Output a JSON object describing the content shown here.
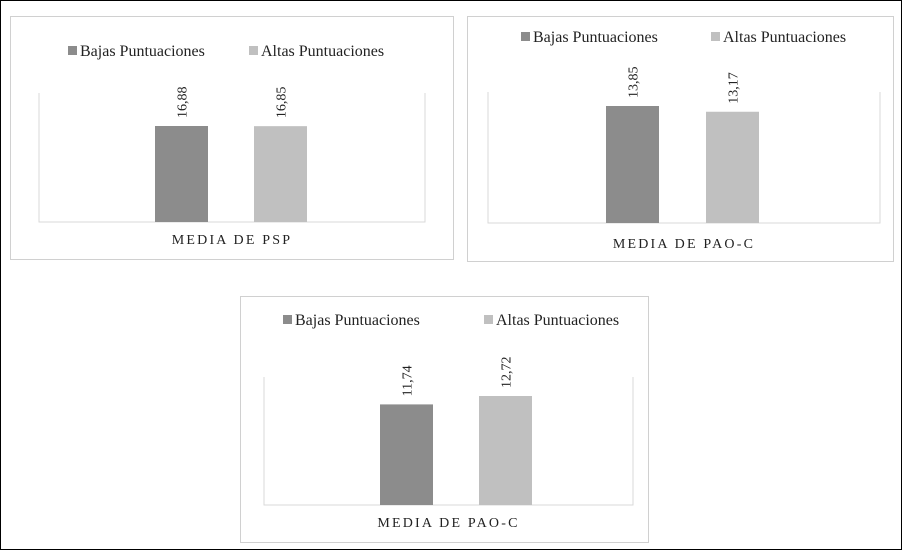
{
  "chart_data": [
    {
      "type": "bar",
      "categories": [
        "MEDIA DE PSP"
      ],
      "series": [
        {
          "name": "Bajas Puntuaciones",
          "values": [
            16.88
          ],
          "labels": [
            "16,88"
          ],
          "color": "#8c8c8c"
        },
        {
          "name": "Altas Puntuaciones",
          "values": [
            16.85
          ],
          "labels": [
            "16,85"
          ],
          "color": "#c0c0c0"
        }
      ],
      "legend": "top",
      "grid": false
    },
    {
      "type": "bar",
      "categories": [
        "MEDIA DE PAO-C"
      ],
      "series": [
        {
          "name": "Bajas Puntuaciones",
          "values": [
            13.85
          ],
          "labels": [
            "13,85"
          ],
          "color": "#8c8c8c"
        },
        {
          "name": "Altas Puntuaciones",
          "values": [
            13.17
          ],
          "labels": [
            "13,17"
          ],
          "color": "#c0c0c0"
        }
      ],
      "legend": "top",
      "grid": false
    },
    {
      "type": "bar",
      "categories": [
        "MEDIA DE PAO-C"
      ],
      "series": [
        {
          "name": "Bajas Puntuaciones",
          "values": [
            11.74
          ],
          "labels": [
            "11,74"
          ],
          "color": "#8c8c8c"
        },
        {
          "name": "Altas Puntuaciones",
          "values": [
            12.72
          ],
          "labels": [
            "12,72"
          ],
          "color": "#c0c0c0"
        }
      ],
      "legend": "top",
      "grid": false
    }
  ]
}
